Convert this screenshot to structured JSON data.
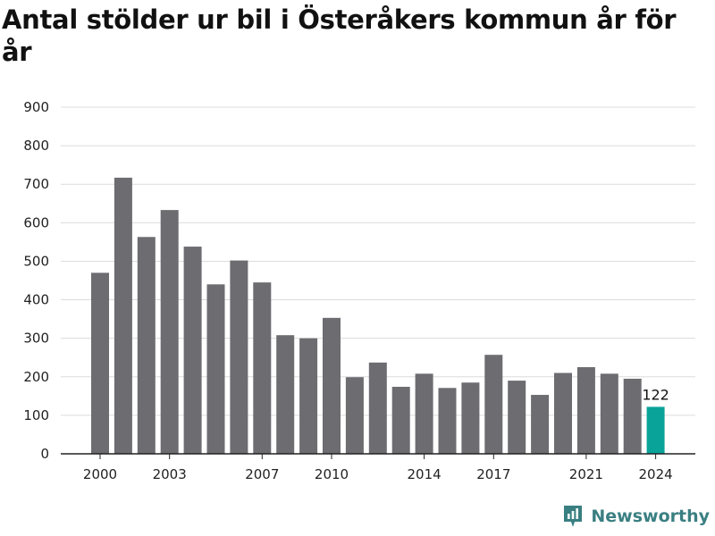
{
  "colors": {
    "bar": "#6d6c71",
    "highlight": "#0aa39a",
    "grid": "#dcdcdc",
    "axis": "#222222",
    "brand": "#3a7f82"
  },
  "brand": {
    "name": "Newsworthy",
    "icon": "newsworthy-logo-icon"
  },
  "chart_data": {
    "type": "bar",
    "title": "Antal stölder ur bil i Österåkers kommun år för år",
    "xlabel": "",
    "ylabel": "",
    "ylim": [
      0,
      900
    ],
    "yticks": [
      0,
      100,
      200,
      300,
      400,
      500,
      600,
      700,
      800,
      900
    ],
    "grid": true,
    "categories": [
      2000,
      2001,
      2002,
      2003,
      2004,
      2005,
      2006,
      2007,
      2008,
      2009,
      2010,
      2011,
      2012,
      2013,
      2014,
      2015,
      2016,
      2017,
      2018,
      2019,
      2020,
      2021,
      2022,
      2023,
      2024
    ],
    "xtick_labels": [
      2000,
      2003,
      2007,
      2010,
      2014,
      2017,
      2021,
      2024
    ],
    "values": [
      470,
      717,
      563,
      633,
      538,
      440,
      502,
      445,
      308,
      300,
      353,
      199,
      237,
      174,
      208,
      171,
      185,
      257,
      190,
      153,
      210,
      225,
      208,
      195,
      122
    ],
    "highlight_category": 2024,
    "data_labels": [
      {
        "category": 2024,
        "text": "122"
      }
    ]
  }
}
